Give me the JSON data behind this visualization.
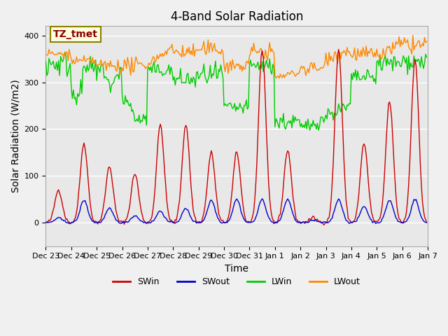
{
  "title": "4-Band Solar Radiation",
  "xlabel": "Time",
  "ylabel": "Solar Radiation (W/m2)",
  "ylim": [
    -50,
    420
  ],
  "xlim": [
    0,
    360
  ],
  "annotation": "TZ_tmet",
  "annotation_fontsize": 10,
  "colors": {
    "SWin": "#cc0000",
    "SWout": "#0000cc",
    "LWin": "#00cc00",
    "LWout": "#ff8800"
  },
  "legend_labels": [
    "SWin",
    "SWout",
    "LWin",
    "LWout"
  ],
  "xtick_labels": [
    "Dec 23",
    "Dec 24",
    "Dec 25",
    "Dec 26",
    "Dec 27",
    "Dec 28",
    "Dec 29",
    "Dec 30",
    "Dec 31",
    "Jan 1",
    "Jan 2",
    "Jan 3",
    "Jan 4",
    "Jan 5",
    "Jan 6",
    "Jan 7"
  ],
  "xtick_positions": [
    0,
    24,
    48,
    72,
    96,
    120,
    144,
    168,
    192,
    216,
    240,
    264,
    288,
    312,
    336,
    360
  ],
  "background_color": "#e8e8e8",
  "grid_color": "#ffffff",
  "title_fontsize": 12,
  "axis_label_fontsize": 10,
  "tick_fontsize": 8
}
